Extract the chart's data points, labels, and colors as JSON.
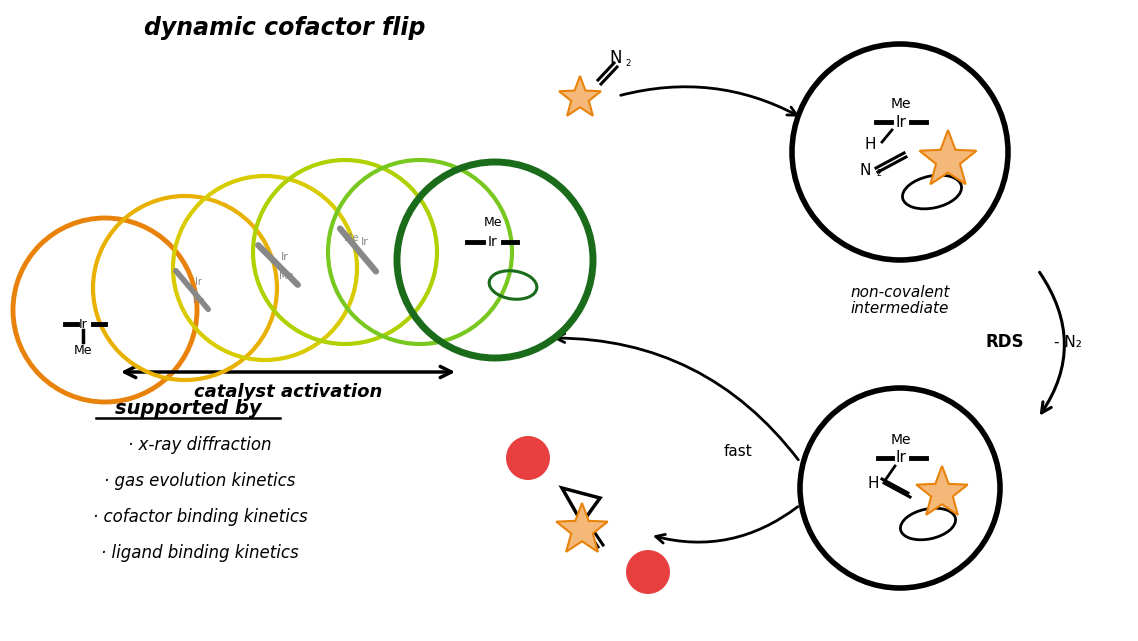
{
  "title": "dynamic cofactor flip",
  "catalyst_activation": "catalyst activation",
  "supported_by": "supported by",
  "bullet_points": [
    "· x-ray diffraction",
    "· gas evolution kinetics",
    "· cofactor binding kinetics",
    "· ligand binding kinetics"
  ],
  "non_covalent_line1": "non-covalent",
  "non_covalent_line2": "intermediate",
  "rds_label": "RDS",
  "minus_n2": "- N₂",
  "fast_label": "fast",
  "orange_color": "#E8820A",
  "star_fill": "#F4B878",
  "star_edge": "#E8820A",
  "red_circle_color": "#E84040",
  "dark_green": "#1A6B1A",
  "light_green": "#6DC820",
  "yellow_green": "#B0D000",
  "yellow": "#E0CC00",
  "deep_yellow": "#E8B000",
  "gray_color": "#888888",
  "black": "#000000",
  "white": "#ffffff",
  "bg_color": "#ffffff",
  "circle_positions": [
    [
      105,
      310,
      92,
      "#E8820A"
    ],
    [
      185,
      288,
      92,
      "#E8B000"
    ],
    [
      265,
      268,
      92,
      "#D8CC00"
    ],
    [
      345,
      252,
      92,
      "#B0D000"
    ],
    [
      420,
      252,
      92,
      "#78C820"
    ],
    [
      495,
      260,
      98,
      "#1A6B1A"
    ]
  ],
  "circle_lw": [
    3.5,
    3.0,
    3.0,
    3.0,
    3.0,
    5.0
  ]
}
